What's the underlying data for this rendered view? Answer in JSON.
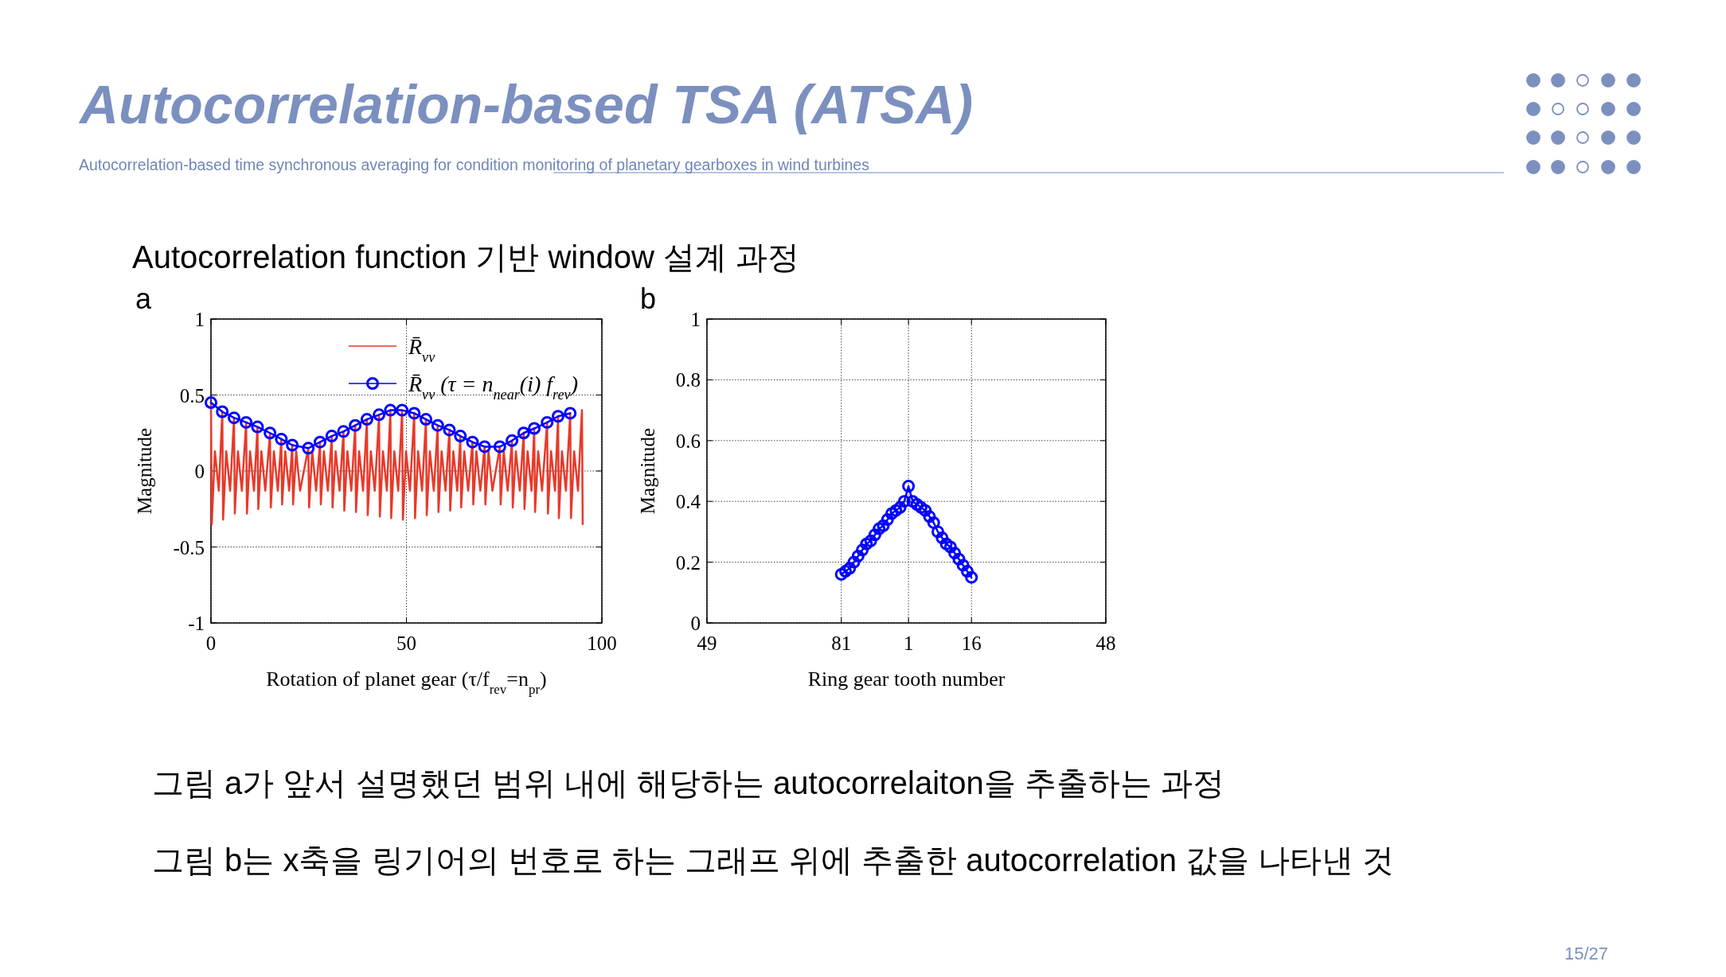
{
  "chart_data": [
    {
      "type": "line",
      "title": "Autocorrelation-based TSA (ATSA)",
      "subtitle": "Autocorrelation-based time synchronous averaging for condition monitoring of planetary gearboxes in wind turbines",
      "xlabel": "Rotation of planet gear (τ/f$_{rev}$=n$_{pr}$)",
      "ylabel": "Magnitude",
      "annotations": [
        "Autocorrelation function 기반 window 설계 과정",
        "a",
        "그림 a가 앞서 설명했던 범위 내에 해당하는 autocorrelaiton을 추출하는 과정",
        "그림 b는 x축을 링기어의 번호로 하는 그래프 위에 추출한 autocorrelation 값을 나타낸 것",
        "15/27"
      ],
      "xlim": [
        0,
        100
      ],
      "ylim": [
        -1,
        1
      ],
      "xticks": [
        0,
        50,
        100
      ],
      "yticks": [
        -1,
        -0.5,
        0,
        0.5,
        1
      ],
      "grid": true,
      "legend": "top right",
      "series": [
        {
          "name": "R̄$_{vv}$",
          "color": "#e8392a",
          "x": [
            0,
            0.2,
            1,
            2,
            2.9,
            3.1,
            3.9,
            4.9,
            5.9,
            6.1,
            6.9,
            7.9,
            9,
            9.2,
            10,
            11,
            11.9,
            12.1,
            12.9,
            13.9,
            15.1,
            15.3,
            16.1,
            17.1,
            18,
            18.2,
            19,
            20,
            20.8,
            21,
            21.8,
            22.8,
            24.9,
            25.1,
            25.9,
            26.9,
            27.9,
            28.1,
            28.9,
            29.9,
            30.9,
            31.1,
            31.9,
            32.9,
            33.9,
            34.1,
            34.9,
            35.9,
            36.9,
            37.1,
            37.9,
            38.9,
            39.9,
            40.1,
            40.9,
            41.9,
            43,
            43.2,
            44,
            45,
            45.9,
            46.1,
            46.9,
            47.9,
            48.9,
            49.1,
            49.9,
            50.9,
            52,
            52.2,
            53,
            54,
            55,
            55.2,
            56,
            57,
            58,
            58.2,
            59,
            60,
            61,
            61.2,
            62,
            63,
            63.8,
            64,
            64.8,
            65.8,
            66.9,
            67.1,
            67.9,
            68.9,
            70,
            70.2,
            71,
            72,
            73.9,
            74.1,
            74.9,
            75.9,
            77,
            77.2,
            78,
            79,
            80,
            80.2,
            81,
            82,
            82.7,
            82.9,
            83.7,
            84.7,
            86,
            86.2,
            87,
            88,
            88.8,
            89,
            89.8,
            90.8,
            91.9,
            92.1,
            92.9,
            93.9,
            94.9,
            95.1
          ],
          "values": [
            0.45,
            -0.35,
            0.13,
            -0.13,
            0.39,
            -0.32,
            0.13,
            -0.13,
            0.35,
            -0.28,
            0.13,
            -0.13,
            0.32,
            -0.28,
            0.13,
            -0.13,
            0.29,
            -0.25,
            0.13,
            -0.13,
            0.25,
            -0.24,
            0.13,
            -0.13,
            0.21,
            -0.22,
            0.13,
            -0.13,
            0.17,
            -0.22,
            0.13,
            -0.13,
            0.15,
            -0.24,
            0.13,
            -0.13,
            0.19,
            -0.22,
            0.13,
            -0.13,
            0.23,
            -0.24,
            0.13,
            -0.13,
            0.26,
            -0.26,
            0.13,
            -0.13,
            0.3,
            -0.27,
            0.13,
            -0.13,
            0.34,
            -0.29,
            0.13,
            -0.13,
            0.37,
            -0.3,
            0.13,
            -0.13,
            0.4,
            -0.31,
            0.13,
            -0.13,
            0.4,
            -0.32,
            0.13,
            -0.13,
            0.38,
            -0.31,
            0.13,
            -0.13,
            0.34,
            -0.29,
            0.13,
            -0.13,
            0.3,
            -0.27,
            0.13,
            -0.13,
            0.27,
            -0.26,
            0.13,
            -0.13,
            0.23,
            -0.24,
            0.13,
            -0.13,
            0.19,
            -0.22,
            0.13,
            -0.13,
            0.16,
            -0.22,
            0.13,
            -0.13,
            0.16,
            -0.22,
            0.13,
            -0.13,
            0.2,
            -0.24,
            0.13,
            -0.13,
            0.25,
            -0.25,
            0.13,
            -0.13,
            0.28,
            -0.27,
            0.13,
            -0.13,
            0.32,
            -0.28,
            0.13,
            -0.13,
            0.36,
            -0.31,
            0.13,
            -0.13,
            0.38,
            -0.31,
            0.13,
            -0.13,
            0.4,
            -0.35
          ]
        },
        {
          "name": "R̄$_{vv}$ (τ = n$_{near}$(i) f$_{rev}$)",
          "color": "#0000ff",
          "marker": "circle",
          "x": [
            0,
            2.9,
            5.9,
            9,
            11.9,
            15.1,
            18,
            20.8,
            24.9,
            27.9,
            30.9,
            33.9,
            36.9,
            39.9,
            43,
            45.9,
            48.9,
            52,
            55,
            58,
            61,
            63.8,
            66.9,
            70,
            73.9,
            77,
            80,
            82.7,
            86,
            88.8,
            91.9
          ],
          "values": [
            0.45,
            0.39,
            0.35,
            0.32,
            0.29,
            0.25,
            0.21,
            0.17,
            0.15,
            0.19,
            0.23,
            0.26,
            0.3,
            0.34,
            0.37,
            0.4,
            0.4,
            0.38,
            0.34,
            0.3,
            0.27,
            0.23,
            0.19,
            0.16,
            0.16,
            0.2,
            0.25,
            0.28,
            0.32,
            0.36,
            0.38
          ]
        }
      ]
    },
    {
      "type": "line",
      "xlabel": "Ring gear tooth number",
      "ylabel": "Magnitude",
      "annotations": [
        "b"
      ],
      "categories": [
        "49",
        null,
        null,
        null,
        null,
        null,
        null,
        null,
        null,
        null,
        null,
        null,
        null,
        null,
        null,
        null,
        null,
        null,
        null,
        null,
        null,
        null,
        null,
        null,
        null,
        null,
        null,
        null,
        null,
        null,
        null,
        null,
        "81",
        null,
        null,
        null,
        null,
        null,
        null,
        null,
        null,
        null,
        null,
        null,
        null,
        null,
        null,
        null,
        "1",
        null,
        null,
        null,
        null,
        null,
        null,
        null,
        null,
        null,
        null,
        null,
        null,
        null,
        null,
        "16",
        null,
        null,
        null,
        null,
        null,
        null,
        null,
        null,
        null,
        null,
        null,
        null,
        null,
        null,
        null,
        null,
        null,
        null,
        null,
        null,
        null,
        null,
        null,
        null,
        null,
        null,
        null,
        null,
        null,
        null,
        null,
        "48"
      ],
      "ylim": [
        0,
        1
      ],
      "yticks": [
        0,
        0.2,
        0.4,
        0.6,
        0.8,
        1
      ],
      "grid": true,
      "marker": "circle",
      "color": "#0000ff",
      "values": [
        null,
        null,
        null,
        null,
        null,
        null,
        null,
        null,
        null,
        null,
        null,
        null,
        null,
        null,
        null,
        null,
        null,
        null,
        null,
        null,
        null,
        null,
        null,
        null,
        null,
        null,
        null,
        null,
        null,
        null,
        null,
        null,
        0.16,
        0.17,
        0.18,
        0.2,
        0.22,
        0.24,
        0.26,
        0.27,
        0.29,
        0.31,
        0.32,
        0.34,
        0.36,
        0.37,
        0.38,
        0.4,
        0.45,
        0.4,
        0.39,
        0.38,
        0.37,
        0.35,
        0.33,
        0.3,
        0.28,
        0.26,
        0.25,
        0.23,
        0.21,
        0.19,
        0.17,
        0.15,
        null,
        null,
        null,
        null,
        null,
        null,
        null,
        null,
        null,
        null,
        null,
        null,
        null,
        null,
        null,
        null,
        null,
        null,
        null,
        null,
        null,
        null,
        null,
        null,
        null,
        null,
        null,
        null,
        null,
        null,
        null,
        null
      ]
    }
  ]
}
